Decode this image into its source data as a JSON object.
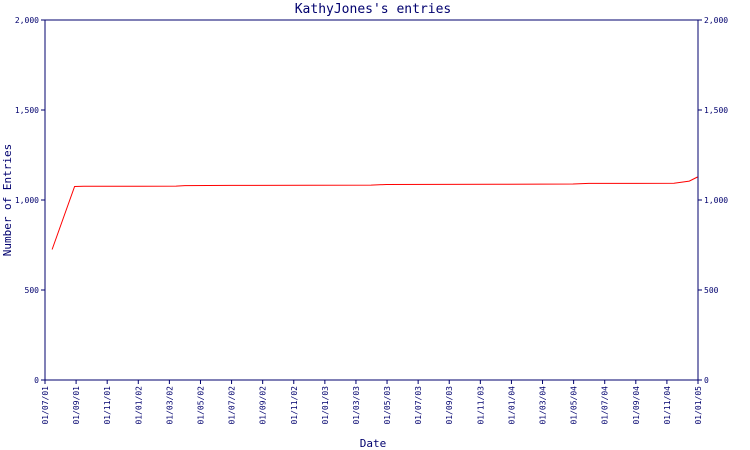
{
  "chart_data": {
    "type": "line",
    "title": "KathyJones's entries",
    "xlabel": "Date",
    "ylabel": "Number of Entries",
    "ylim": [
      0,
      2000
    ],
    "y_ticks": [
      0,
      500,
      1000,
      1500,
      2000
    ],
    "y_tick_labels": [
      "0",
      "500",
      "1,000",
      "1,500",
      "2,000"
    ],
    "x_tick_labels": [
      "01/07/01",
      "01/09/01",
      "01/11/01",
      "01/01/02",
      "01/03/02",
      "01/05/02",
      "01/07/02",
      "01/09/02",
      "01/11/02",
      "01/01/03",
      "01/03/03",
      "01/05/03",
      "01/07/03",
      "01/09/03",
      "01/11/03",
      "01/01/04",
      "01/03/04",
      "01/05/04",
      "01/07/04",
      "01/09/04",
      "01/11/04",
      "01/01/05"
    ],
    "grid": false,
    "line_color": "#ff0000",
    "axis_color": "#00006e",
    "series": [
      {
        "x": [
          "2001-07-15",
          "2001-08-28",
          "2001-09-15",
          "2002-01-01",
          "2002-03-15",
          "2002-04-01",
          "2002-07-01",
          "2002-12-01",
          "2003-04-01",
          "2003-05-01",
          "2003-12-01",
          "2004-05-01",
          "2004-06-01",
          "2004-11-15",
          "2004-12-15",
          "2004-12-31"
        ],
        "values": [
          725,
          1075,
          1076,
          1076,
          1077,
          1080,
          1081,
          1082,
          1083,
          1086,
          1087,
          1089,
          1092,
          1093,
          1105,
          1128
        ]
      }
    ]
  }
}
